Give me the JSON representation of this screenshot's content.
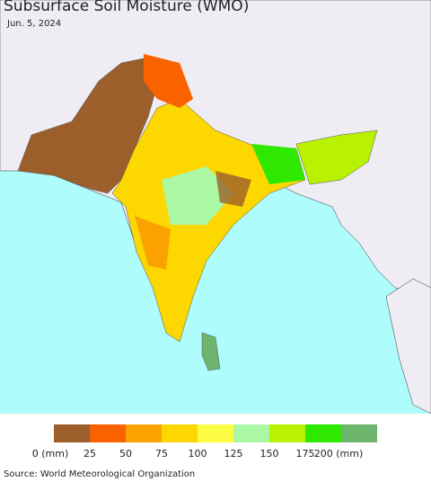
{
  "header": {
    "title": "Subsurface Soil Moisture (WMO)",
    "date": "Jun. 5, 2024"
  },
  "legend": {
    "colors": [
      "#9c5f2c",
      "#fa6200",
      "#fca200",
      "#fcd800",
      "#fcfc44",
      "#aaf7a4",
      "#b8f200",
      "#2ee800",
      "#6db56d"
    ],
    "labels": [
      "0 (mm)",
      "25",
      "50",
      "75",
      "100",
      "125",
      "150",
      "175",
      "200 (mm)"
    ]
  },
  "footer": {
    "source": "Source: World Meteorological Organization"
  }
}
